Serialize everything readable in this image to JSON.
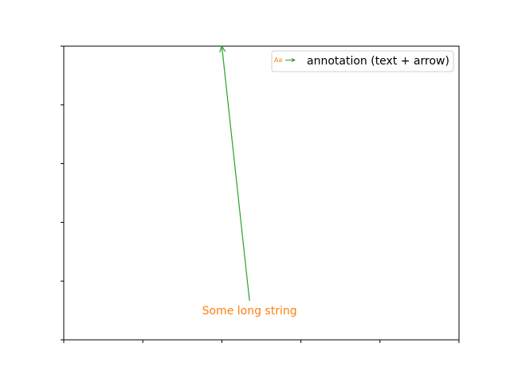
{
  "chart_data": {
    "type": "scatter",
    "title": "",
    "xlabel": "",
    "ylabel": "",
    "xlim": [
      0,
      1
    ],
    "ylim": [
      0,
      1
    ],
    "grid": false,
    "legend": {
      "placement": "upper-right",
      "handle_text": "Aa",
      "entries": [
        {
          "label": "annotation (text + arrow)"
        }
      ]
    },
    "annotations": [
      {
        "text": "Some long string",
        "text_color": "#ff7f0e",
        "arrow_color": "#2ca02c",
        "xy": [
          0.4,
          1.0
        ],
        "xytext": [
          0.47,
          0.1
        ]
      }
    ]
  }
}
